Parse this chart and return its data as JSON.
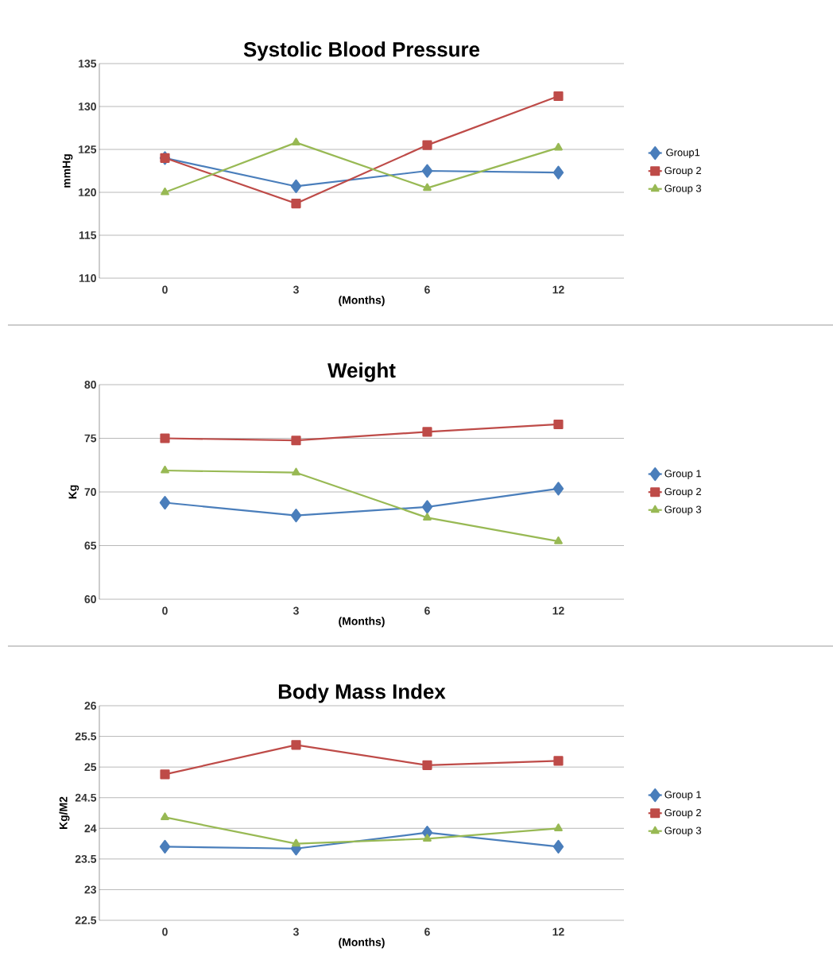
{
  "chart_data": [
    {
      "type": "line",
      "title": "Systolic Blood Pressure",
      "xlabel": "(Months)",
      "ylabel": "mmHg",
      "categories": [
        "0",
        "3",
        "6",
        "12"
      ],
      "ylim": [
        110,
        135
      ],
      "yticks": [
        110,
        115,
        120,
        125,
        130,
        135
      ],
      "grid": "y",
      "legend": "right",
      "series": [
        {
          "name": "Group1",
          "color": "#4a7ebb",
          "marker": "diamond",
          "values": [
            124,
            120.7,
            122.5,
            122.3
          ]
        },
        {
          "name": "Group 2",
          "color": "#be4b48",
          "marker": "square",
          "values": [
            124,
            118.7,
            125.5,
            131.2
          ]
        },
        {
          "name": "Group 3",
          "color": "#98b954",
          "marker": "triangle",
          "values": [
            120,
            125.8,
            120.5,
            125.2
          ]
        }
      ]
    },
    {
      "type": "line",
      "title": "Weight",
      "xlabel": "(Months)",
      "ylabel": "Kg",
      "categories": [
        "0",
        "3",
        "6",
        "12"
      ],
      "ylim": [
        60,
        80
      ],
      "yticks": [
        60,
        65,
        70,
        75,
        80
      ],
      "grid": "y",
      "legend": "right",
      "series": [
        {
          "name": "Group 1",
          "color": "#4a7ebb",
          "marker": "diamond",
          "values": [
            69,
            67.8,
            68.6,
            70.3
          ]
        },
        {
          "name": "Group 2",
          "color": "#be4b48",
          "marker": "square",
          "values": [
            75,
            74.8,
            75.6,
            76.3
          ]
        },
        {
          "name": "Group 3",
          "color": "#98b954",
          "marker": "triangle",
          "values": [
            72,
            71.8,
            67.6,
            65.4
          ]
        }
      ]
    },
    {
      "type": "line",
      "title": "Body Mass Index",
      "xlabel": "(Months)",
      "ylabel": "Kg/M2",
      "categories": [
        "0",
        "3",
        "6",
        "12"
      ],
      "ylim": [
        22.5,
        26
      ],
      "yticks": [
        22.5,
        23,
        23.5,
        24,
        24.5,
        25,
        25.5,
        26
      ],
      "grid": "y",
      "legend": "right",
      "series": [
        {
          "name": "Group 1",
          "color": "#4a7ebb",
          "marker": "diamond",
          "values": [
            23.7,
            23.67,
            23.93,
            23.7
          ]
        },
        {
          "name": "Group 2",
          "color": "#be4b48",
          "marker": "square",
          "values": [
            24.88,
            25.36,
            25.03,
            25.1
          ]
        },
        {
          "name": "Group 3",
          "color": "#98b954",
          "marker": "triangle",
          "values": [
            24.18,
            23.75,
            23.83,
            24.0
          ]
        }
      ]
    }
  ]
}
